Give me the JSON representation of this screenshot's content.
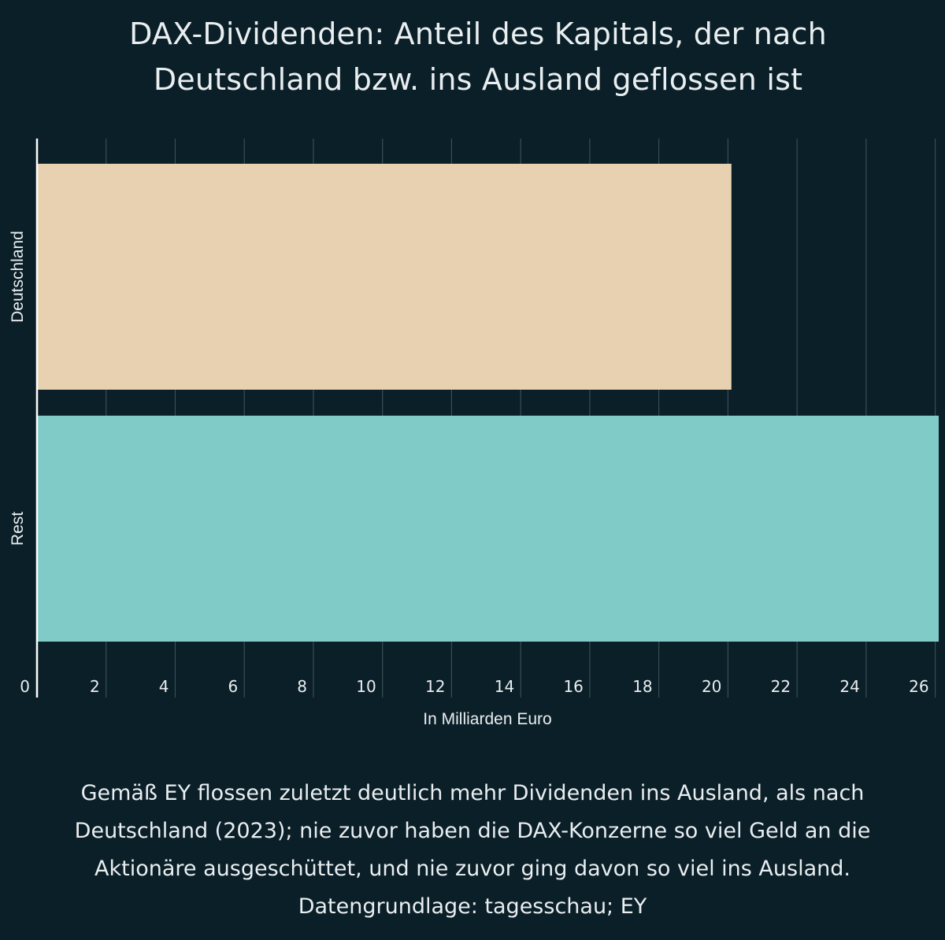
{
  "chart_data": {
    "type": "bar",
    "orientation": "horizontal",
    "title": "DAX-Dividenden: Anteil des Kapitals, der nach Deutschland bzw. ins Ausland geflossen ist",
    "categories": [
      "Deutschland",
      "Rest"
    ],
    "values": [
      20.1,
      26.1
    ],
    "colors": [
      "#e8d1b0",
      "#80cac8"
    ],
    "xlabel": "In Milliarden Euro",
    "ylabel": "",
    "xlim": [
      0,
      26.1
    ],
    "xticks": [
      0,
      2,
      4,
      6,
      8,
      10,
      12,
      14,
      16,
      18,
      20,
      22,
      24,
      26
    ],
    "grid": true,
    "legend": "none"
  },
  "caption": {
    "line1": "Gemäß EY flossen zuletzt deutlich mehr Dividenden ins Ausland, als nach",
    "line2": "Deutschland (2023); nie zuvor haben die DAX-Konzerne so viel Geld an die",
    "line3": "Aktionäre ausgeschüttet, und nie zuvor ging davon so viel ins Ausland.",
    "line4": "Datengrundlage: tagesschau; EY"
  },
  "colors": {
    "background": "#0b1f28",
    "gridline": "#3a4d55",
    "axis": "#ffffff",
    "text": "#e9eef0"
  }
}
